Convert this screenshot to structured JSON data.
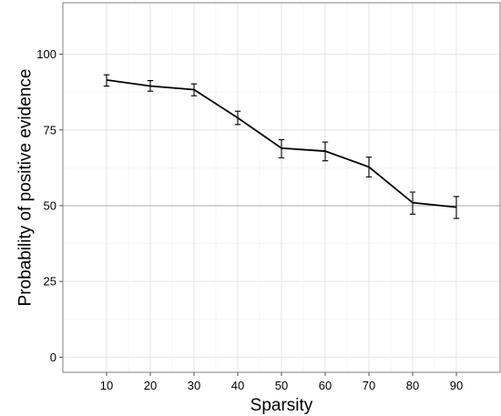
{
  "chart_data": {
    "type": "line",
    "title": "",
    "xlabel": "Sparsity",
    "ylabel": "Probability of positive evidence",
    "xlim": [
      0,
      100
    ],
    "ylim": [
      -5,
      117
    ],
    "x_ticks": [
      10,
      20,
      30,
      40,
      50,
      60,
      70,
      80,
      90
    ],
    "y_ticks": [
      0,
      25,
      50,
      75,
      100
    ],
    "grid": true,
    "reference_line": {
      "orientation": "horizontal",
      "value": 50,
      "color": "#aaaaaa"
    },
    "series": [
      {
        "x": [
          10,
          20,
          30,
          40,
          50,
          60,
          70,
          80,
          90
        ],
        "values": [
          91.5,
          89.5,
          88.3,
          79,
          69,
          68,
          62.8,
          51,
          49.5
        ],
        "error_low": [
          89.5,
          87.8,
          86.3,
          76.8,
          65.8,
          64.8,
          59.5,
          47.2,
          45.8
        ],
        "error_high": [
          93.2,
          91.3,
          90.2,
          81.2,
          71.8,
          71,
          66,
          54.5,
          53
        ],
        "color": "#000000"
      }
    ]
  }
}
